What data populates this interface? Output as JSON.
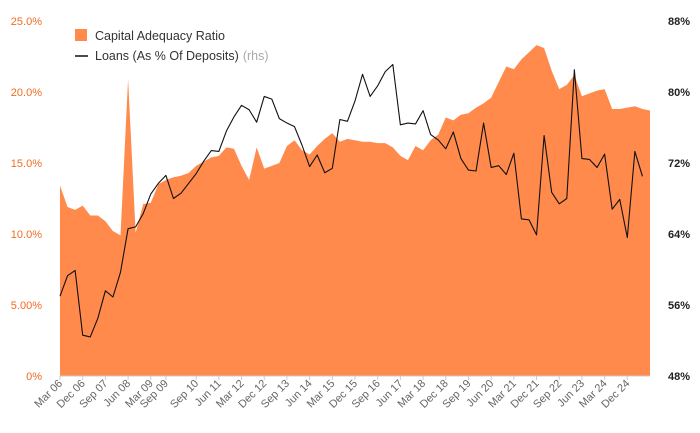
{
  "chart_data": {
    "type": "area",
    "title": "",
    "xlabel": "",
    "ylabel_left": "",
    "ylabel_right": "",
    "grid": false,
    "legend_position": "top-left",
    "colors": {
      "area": "#ff8a4c",
      "line": "#111111",
      "left_ticks": "#f26b21",
      "right_ticks": "#222222",
      "x_ticks": "#666666",
      "axis": "#cccccc"
    },
    "x_start": "Mar 06",
    "x_step_months": 3,
    "x_tick_labels": [
      "Mar 06",
      "Dec 06",
      "Sep 07",
      "Jun 08",
      "Mar 09",
      "Sep 09",
      "Sep 10",
      "Jun 11",
      "Mar 12",
      "Dec 12",
      "Sep 13",
      "Jun 14",
      "Mar 15",
      "Dec 15",
      "Sep 16",
      "Jun 17",
      "Mar 18",
      "Dec 18",
      "Sep 19",
      "Jun 20",
      "Mar 21",
      "Dec 21",
      "Sep 22",
      "Jun 23",
      "Mar 24",
      "Dec 24"
    ],
    "x_tick_index": [
      0,
      3,
      6,
      9,
      12,
      14,
      18,
      21,
      24,
      27,
      30,
      33,
      36,
      39,
      42,
      45,
      48,
      51,
      54,
      57,
      60,
      63,
      66,
      69,
      72,
      75
    ],
    "y_left": {
      "ylim": [
        0,
        25
      ],
      "ticks": [
        "0%",
        "5.00%",
        "10.0%",
        "15.0%",
        "20.0%",
        "25.0%"
      ],
      "tick_values": [
        0,
        5,
        10,
        15,
        20,
        25
      ]
    },
    "y_right": {
      "ylim": [
        48,
        88
      ],
      "ticks": [
        "48%",
        "56%",
        "64%",
        "72%",
        "80%",
        "88%"
      ],
      "tick_values": [
        48,
        56,
        64,
        72,
        80,
        88
      ]
    },
    "legend": [
      {
        "label": "Capital Adequacy Ratio",
        "suffix": ""
      },
      {
        "label": "Loans (As % Of Deposits)",
        "suffix": "(rhs)"
      }
    ],
    "series": [
      {
        "name": "Capital Adequacy Ratio",
        "axis": "left",
        "kind": "area",
        "values": [
          13.4,
          11.9,
          11.7,
          12.0,
          11.3,
          11.3,
          10.9,
          10.2,
          9.9,
          20.9,
          10.1,
          12.1,
          12.2,
          13.5,
          13.8,
          14.0,
          14.1,
          14.3,
          14.8,
          15.1,
          15.4,
          15.5,
          16.1,
          16.0,
          14.8,
          13.8,
          16.1,
          14.6,
          14.8,
          15.0,
          16.2,
          16.6,
          15.9,
          15.6,
          16.2,
          16.7,
          17.1,
          16.5,
          16.7,
          16.6,
          16.5,
          16.5,
          16.4,
          16.4,
          16.1,
          15.5,
          15.2,
          16.2,
          15.9,
          16.6,
          17.0,
          18.2,
          18.0,
          18.4,
          18.5,
          18.9,
          19.2,
          19.6,
          20.7,
          21.8,
          21.6,
          22.3,
          22.8,
          23.3,
          23.1,
          21.5,
          20.2,
          20.5,
          21.2,
          19.7,
          19.9,
          20.1,
          20.2,
          18.8,
          18.8,
          18.9,
          19.0,
          18.8,
          18.7
        ]
      },
      {
        "name": "Loans (As % Of Deposits)",
        "axis": "right",
        "kind": "line",
        "values": [
          57.0,
          59.3,
          59.9,
          52.6,
          52.4,
          54.5,
          57.6,
          56.9,
          59.7,
          64.6,
          64.8,
          66.3,
          68.5,
          69.7,
          70.6,
          68.0,
          68.6,
          69.7,
          70.8,
          72.2,
          73.4,
          73.3,
          75.6,
          77.2,
          78.5,
          78.0,
          76.6,
          79.5,
          79.2,
          77.0,
          76.5,
          76.1,
          74.0,
          71.6,
          72.9,
          70.9,
          71.4,
          76.9,
          76.7,
          79.0,
          82.0,
          79.5,
          80.7,
          82.3,
          83.1,
          76.3,
          76.5,
          76.4,
          77.9,
          75.2,
          74.6,
          73.6,
          75.5,
          72.5,
          71.2,
          71.1,
          76.5,
          71.5,
          71.7,
          70.7,
          73.1,
          65.7,
          65.6,
          63.9,
          75.1,
          68.7,
          67.4,
          68.0,
          82.5,
          72.5,
          72.4,
          71.5,
          73.0,
          66.8,
          67.9,
          63.6,
          73.3,
          70.5
        ]
      }
    ]
  }
}
